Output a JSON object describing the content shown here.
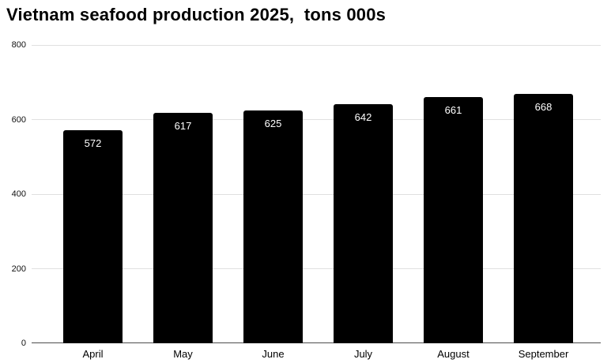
{
  "chart_data": {
    "type": "bar",
    "title": "Vietnam seafood production 2025,  tons 000s",
    "categories": [
      "April",
      "May",
      "June",
      "July",
      "August",
      "September"
    ],
    "values": [
      572,
      617,
      625,
      642,
      661,
      668
    ],
    "value_labels": [
      "572",
      "617",
      "625",
      "642",
      "661",
      "668"
    ],
    "xlabel": "",
    "ylabel": "",
    "ylim": [
      0,
      800
    ],
    "yticks": [
      0,
      200,
      400,
      600,
      800
    ],
    "grid": "horizontal",
    "legend": "none",
    "colors": {
      "bar": "#000000",
      "value_label": "#ffffff",
      "gridline": "#e0e0e0",
      "axis_line": "#4d4d4d",
      "text": "#000000",
      "background": "#ffffff"
    }
  }
}
